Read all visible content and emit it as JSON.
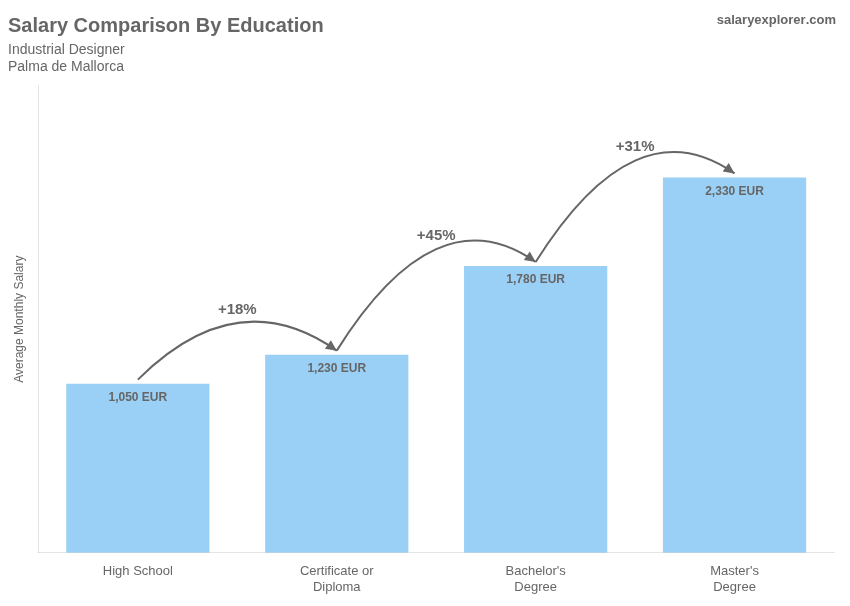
{
  "chart_data": {
    "type": "bar",
    "title": "Salary Comparison By Education",
    "subtitle": [
      "Industrial Designer",
      "Palma de Mallorca"
    ],
    "watermark": [
      "salary",
      "explorer",
      ".com"
    ],
    "y_label": "Average Monthly Salary",
    "categories": [
      "High School",
      "Certificate or\nDiploma",
      "Bachelor's\nDegree",
      "Master's\nDegree"
    ],
    "values": [
      1050,
      1230,
      1780,
      2330
    ],
    "value_labels": [
      "1,050 EUR",
      "1,230 EUR",
      "1,780 EUR",
      "2,330 EUR"
    ],
    "data_labels": true,
    "annotations": [
      "+18%",
      "+45%",
      "+31%"
    ],
    "ylim": [
      0,
      2900
    ],
    "tick_labels": "x",
    "grid": false
  }
}
